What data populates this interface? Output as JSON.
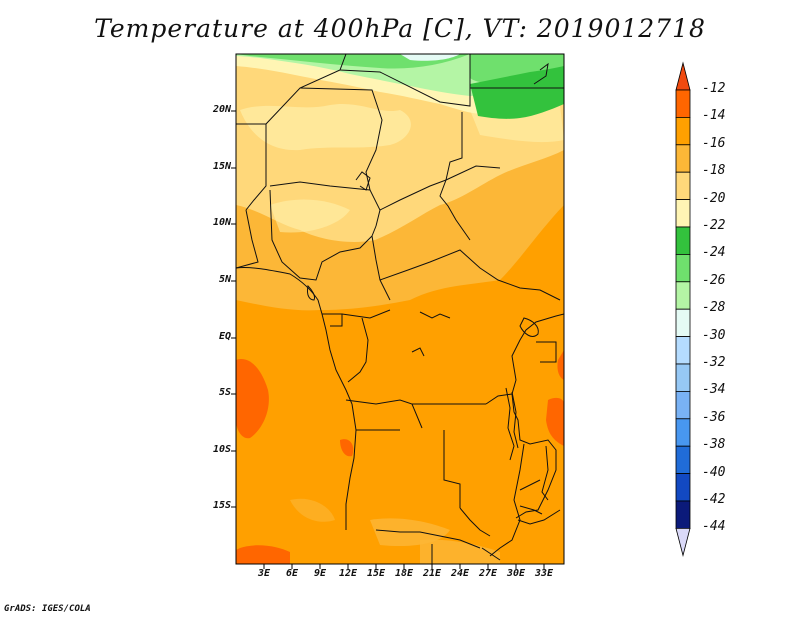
{
  "title": "Temperature at 400hPa [C], VT: 2019012718",
  "credit": "GrADS: IGES/COLA",
  "map": {
    "lat_labels": [
      "20N",
      "15N",
      "10N",
      "5N",
      "EQ",
      "5S",
      "10S",
      "15S"
    ],
    "lon_labels": [
      "3E",
      "6E",
      "9E",
      "12E",
      "15E",
      "18E",
      "21E",
      "24E",
      "27E",
      "30E",
      "33E"
    ]
  },
  "colorbar": {
    "labels": [
      "-12",
      "-14",
      "-16",
      "-18",
      "-20",
      "-22",
      "-24",
      "-26",
      "-28",
      "-30",
      "-32",
      "-34",
      "-36",
      "-38",
      "-40",
      "-42",
      "-44"
    ],
    "colors": [
      "#f04a10",
      "#ff6600",
      "#ffa000",
      "#fcb737",
      "#ffd87a",
      "#fff5b4",
      "#33c23d",
      "#6fe06d",
      "#b4f5a5",
      "#e5fbf5",
      "#b5dcff",
      "#96c8f5",
      "#79b2f5",
      "#4897f0",
      "#206cd8",
      "#1249c2",
      "#0b1a7a",
      "#dad9f8"
    ]
  }
}
